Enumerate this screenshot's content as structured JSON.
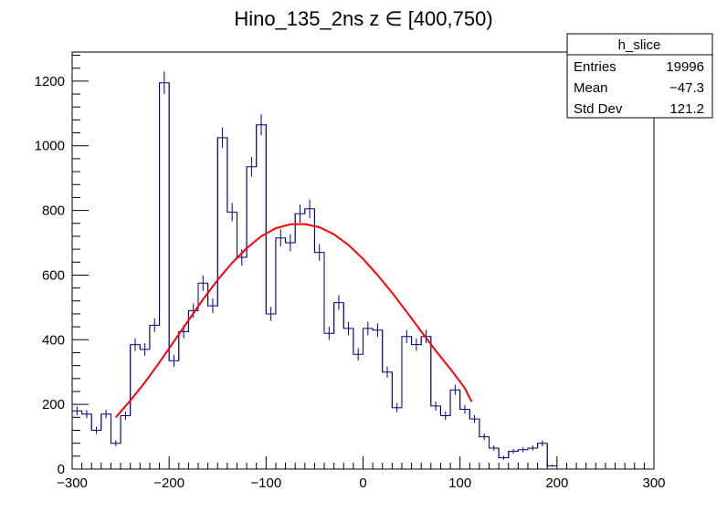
{
  "chart_data": {
    "type": "histogram",
    "title": "Hino_135_2ns z  ∈ [400,750)",
    "xlabel": "",
    "ylabel": "",
    "xlim": [
      -300,
      300
    ],
    "ylim": [
      0,
      1290
    ],
    "bin_width": 10,
    "x_ticks": [
      -300,
      -200,
      -100,
      0,
      100,
      200,
      300
    ],
    "y_ticks": [
      0,
      200,
      400,
      600,
      800,
      1000,
      1200
    ],
    "grid": false,
    "histogram": {
      "name": "h_slice",
      "color": "#000080",
      "bin_edges_start": -300,
      "counts": [
        180,
        170,
        120,
        170,
        80,
        165,
        385,
        370,
        445,
        1195,
        335,
        425,
        490,
        575,
        505,
        1025,
        795,
        655,
        935,
        1065,
        480,
        715,
        700,
        790,
        805,
        670,
        420,
        515,
        435,
        355,
        435,
        430,
        300,
        190,
        410,
        385,
        410,
        195,
        165,
        245,
        185,
        155,
        100,
        65,
        35,
        55,
        60,
        65,
        80,
        10
      ]
    },
    "fit": {
      "name": "gaussian fit",
      "color": "#ff0000",
      "x": [
        -255,
        -240,
        -225,
        -210,
        -195,
        -180,
        -165,
        -150,
        -135,
        -120,
        -105,
        -90,
        -75,
        -60,
        -45,
        -30,
        -15,
        0,
        15,
        30,
        45,
        60,
        75,
        90,
        105,
        112
      ],
      "y": [
        160,
        212,
        268,
        330,
        395,
        460,
        525,
        585,
        638,
        683,
        720,
        745,
        757,
        758,
        748,
        726,
        693,
        650,
        600,
        545,
        486,
        426,
        366,
        310,
        250,
        208
      ]
    },
    "stats_box": {
      "name": "h_slice",
      "rows": [
        {
          "label": "Entries",
          "value": "19996"
        },
        {
          "label": "Mean",
          "value": "−47.3"
        },
        {
          "label": "Std Dev",
          "value": "121.2"
        }
      ]
    }
  }
}
